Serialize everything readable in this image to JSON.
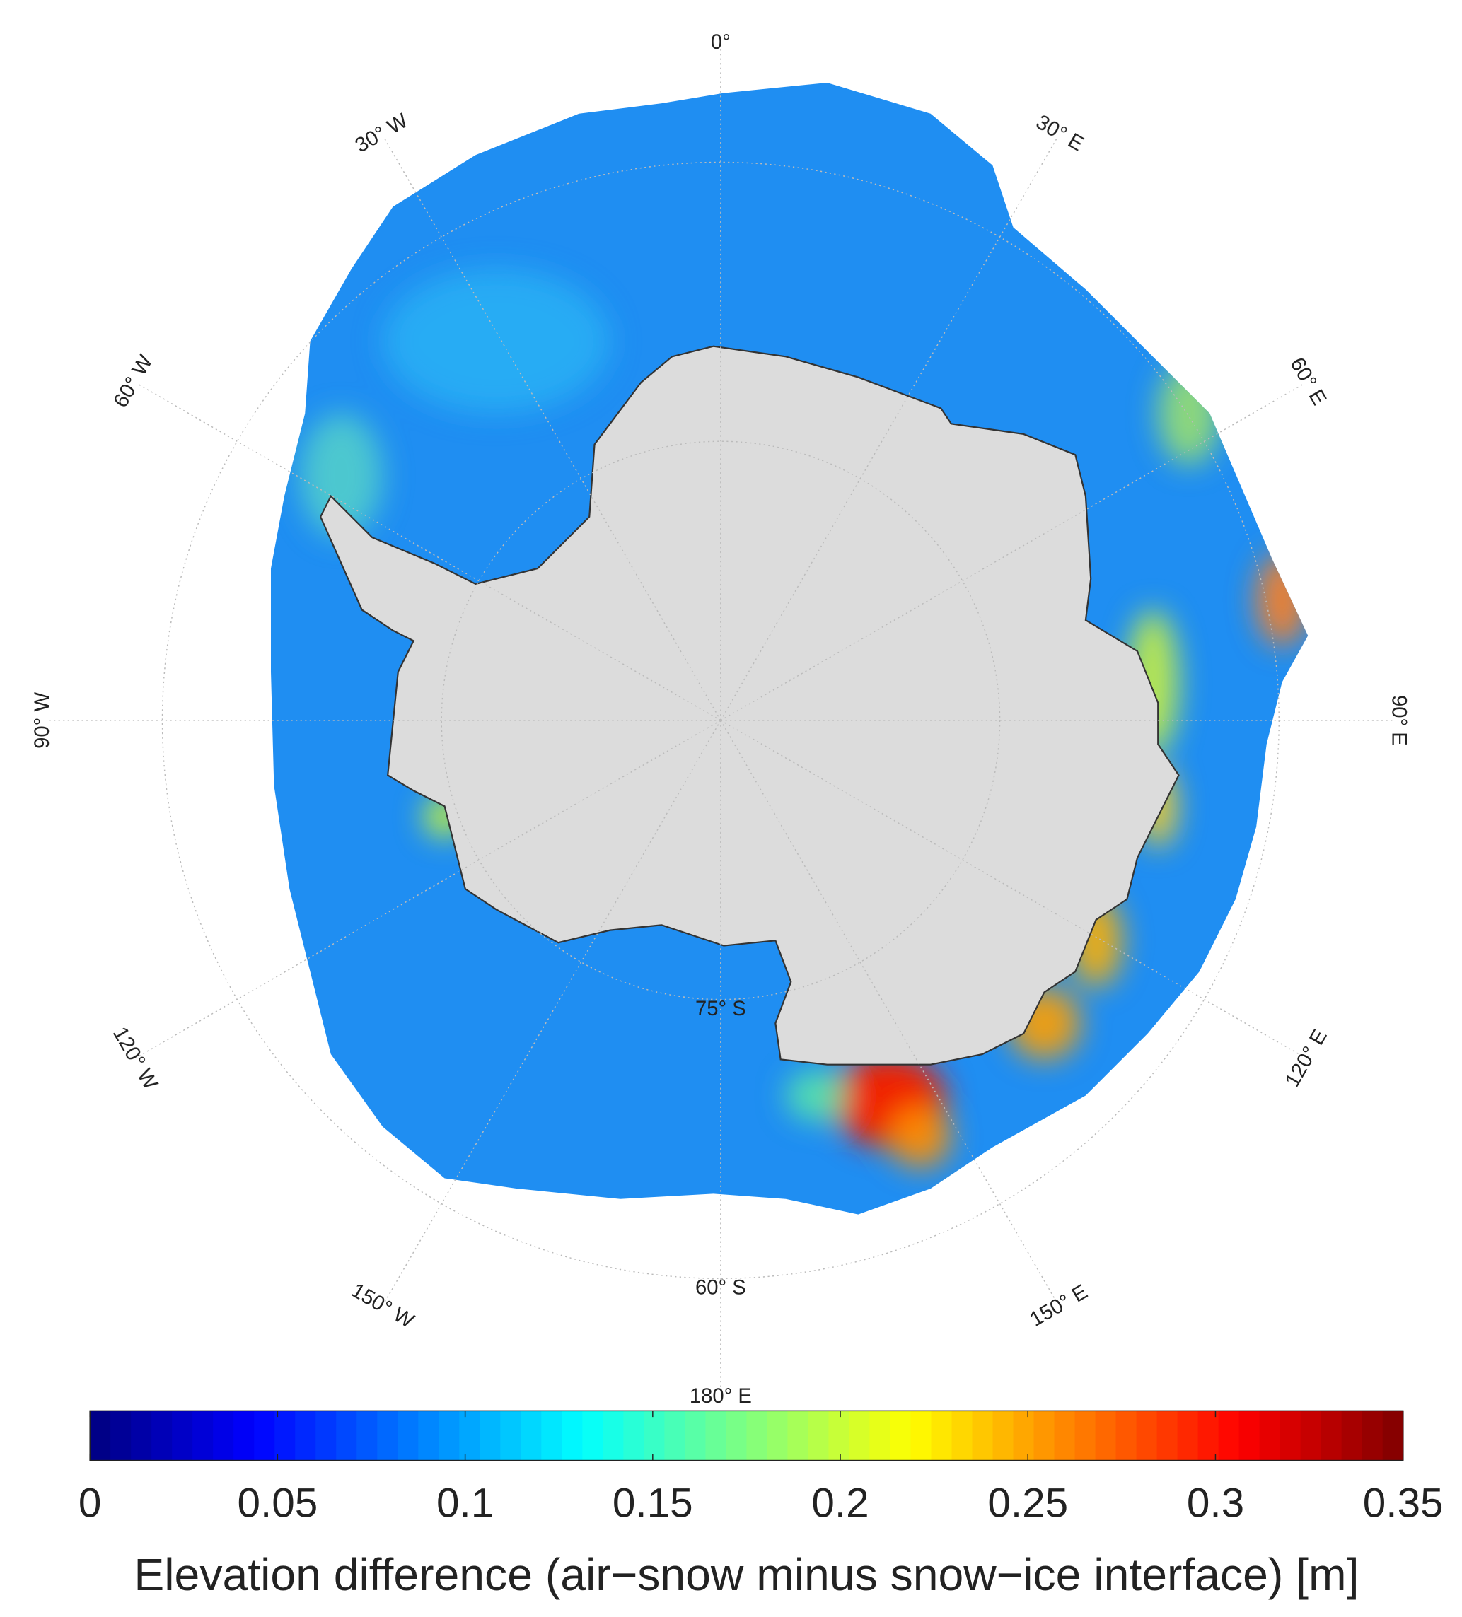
{
  "chart_data": {
    "type": "polar-map",
    "meridians": [
      {
        "value": 0,
        "label": "0°"
      },
      {
        "value": 30,
        "label": "30° E"
      },
      {
        "value": 60,
        "label": "60° E"
      },
      {
        "value": 90,
        "label": "90° E"
      },
      {
        "value": 120,
        "label": "120° E"
      },
      {
        "value": 150,
        "label": "150° E"
      },
      {
        "value": 180,
        "label": "180° E"
      },
      {
        "value": -150,
        "label": "150° W"
      },
      {
        "value": -120,
        "label": "120° W"
      },
      {
        "value": -90,
        "label": "90° W"
      },
      {
        "value": -60,
        "label": "60° W"
      },
      {
        "value": -30,
        "label": "30° W"
      }
    ],
    "parallels": [
      {
        "value": -75,
        "label": "75° S"
      },
      {
        "value": -60,
        "label": "60° S"
      }
    ],
    "colorbar": {
      "colormap": "jet",
      "clim": [
        0,
        0.35
      ],
      "ticks": [
        0,
        0.05,
        0.1,
        0.15,
        0.2,
        0.25,
        0.3,
        0.35
      ],
      "label": "Elevation difference (air−snow minus snow−ice interface) [m]"
    }
  }
}
